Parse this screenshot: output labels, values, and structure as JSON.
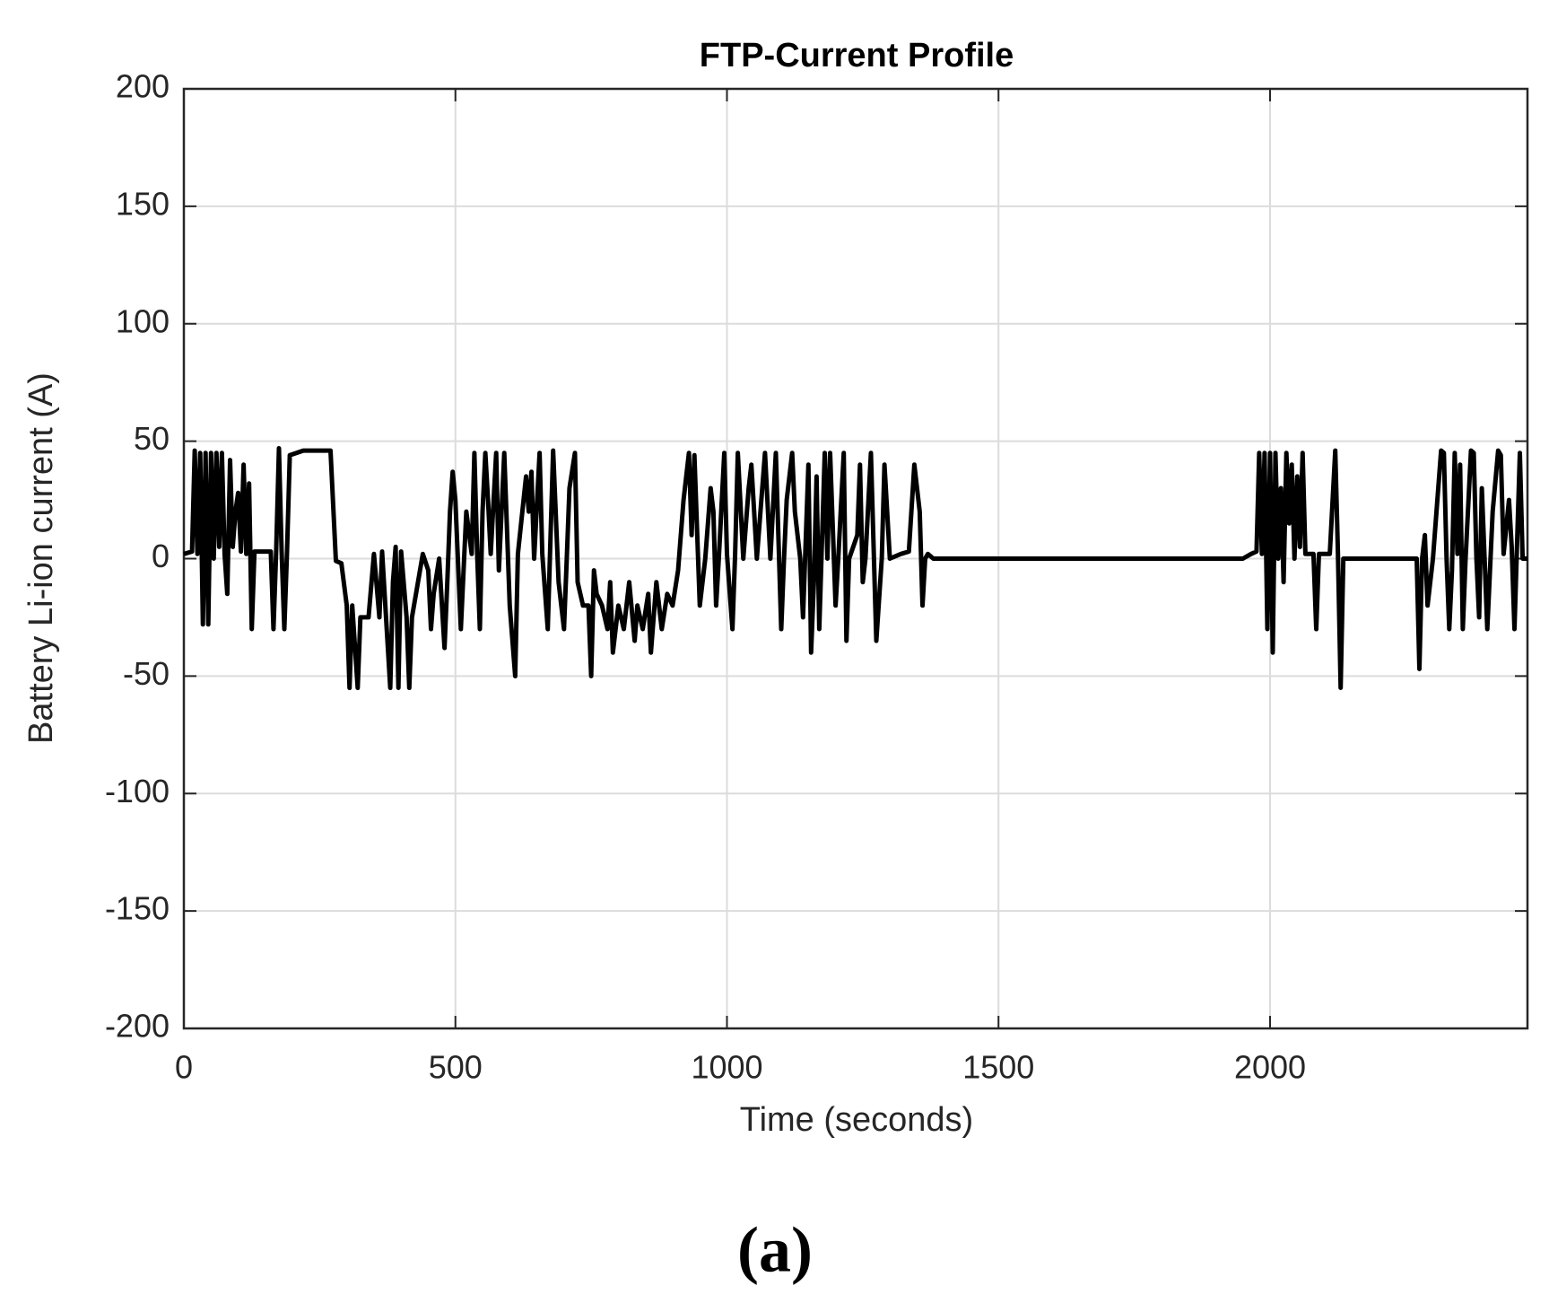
{
  "chart_data": {
    "type": "line",
    "title": "FTP-Current Profile",
    "x_label": "Time (seconds)",
    "y_label": "Battery Li-ion current (A)",
    "xlim": [
      0,
      2474
    ],
    "ylim": [
      -200,
      200
    ],
    "xticks": [
      0,
      500,
      1000,
      1500,
      2000
    ],
    "yticks": [
      -200,
      -150,
      -100,
      -50,
      0,
      50,
      100,
      150,
      200
    ],
    "grid": true,
    "series": [
      {
        "color": "#000000",
        "x": [
          0,
          15,
          20,
          25,
          30,
          35,
          40,
          45,
          50,
          55,
          60,
          65,
          70,
          75,
          80,
          85,
          90,
          95,
          100,
          105,
          110,
          115,
          120,
          125,
          130,
          140,
          160,
          165,
          170,
          175,
          180,
          185,
          190,
          195,
          220,
          250,
          270,
          280,
          290,
          300,
          305,
          310,
          320,
          325,
          340,
          350,
          360,
          365,
          380,
          385,
          390,
          395,
          400,
          410,
          415,
          420,
          440,
          450,
          455,
          460,
          470,
          480,
          485,
          490,
          495,
          500,
          510,
          520,
          530,
          535,
          540,
          545,
          550,
          555,
          560,
          565,
          575,
          580,
          590,
          600,
          610,
          615,
          630,
          635,
          640,
          645,
          655,
          660,
          670,
          680,
          690,
          700,
          705,
          710,
          720,
          725,
          735,
          745,
          750,
          755,
          760,
          770,
          780,
          785,
          790,
          800,
          810,
          820,
          830,
          835,
          845,
          855,
          860,
          870,
          880,
          890,
          900,
          910,
          920,
          930,
          935,
          940,
          950,
          960,
          970,
          975,
          980,
          985,
          995,
          1000,
          1010,
          1015,
          1020,
          1030,
          1040,
          1045,
          1050,
          1055,
          1070,
          1080,
          1090,
          1100,
          1105,
          1110,
          1120,
          1125,
          1135,
          1140,
          1150,
          1155,
          1160,
          1165,
          1170,
          1180,
          1185,
          1190,
          1200,
          1205,
          1215,
          1220,
          1225,
          1240,
          1245,
          1250,
          1255,
          1265,
          1275,
          1285,
          1290,
          1300,
          1320,
          1335,
          1345,
          1355,
          1360,
          1365,
          1370,
          1380,
          1950,
          1965,
          1975,
          1980,
          1985,
          1990,
          1995,
          2000,
          2005,
          2010,
          2015,
          2020,
          2025,
          2030,
          2035,
          2040,
          2045,
          2050,
          2055,
          2060,
          2065,
          2080,
          2085,
          2090,
          2110,
          2120,
          2125,
          2130,
          2135,
          2140,
          2270,
          2275,
          2280,
          2285,
          2290,
          2300,
          2315,
          2320,
          2325,
          2330,
          2335,
          2340,
          2345,
          2350,
          2355,
          2360,
          2370,
          2375,
          2380,
          2385,
          2390,
          2395,
          2400,
          2410,
          2420,
          2425,
          2430,
          2440,
          2445,
          2450,
          2460,
          2465,
          2474
        ],
        "values": [
          2,
          3,
          46,
          2,
          45,
          -28,
          45,
          -28,
          45,
          0,
          45,
          5,
          45,
          2,
          -15,
          42,
          5,
          20,
          28,
          3,
          40,
          2,
          32,
          -30,
          3,
          3,
          3,
          -30,
          3,
          47,
          3,
          -30,
          3,
          44,
          46,
          46,
          46,
          -1,
          -2,
          -20,
          -55,
          -20,
          -55,
          -25,
          -25,
          2,
          -25,
          3,
          -55,
          -10,
          5,
          -55,
          3,
          -25,
          -55,
          -25,
          2,
          -5,
          -30,
          -15,
          0,
          -38,
          -10,
          20,
          37,
          25,
          -30,
          20,
          2,
          45,
          2,
          -30,
          20,
          45,
          25,
          2,
          45,
          -5,
          45,
          -20,
          -50,
          2,
          35,
          20,
          37,
          0,
          45,
          2,
          -30,
          46,
          -10,
          -30,
          0,
          30,
          45,
          -10,
          -20,
          -20,
          -50,
          -5,
          -15,
          -20,
          -30,
          -10,
          -40,
          -20,
          -30,
          -10,
          -35,
          -20,
          -30,
          -15,
          -40,
          -10,
          -30,
          -15,
          -20,
          -5,
          25,
          45,
          10,
          44,
          -20,
          0,
          30,
          20,
          -20,
          0,
          45,
          2,
          -30,
          2,
          45,
          0,
          30,
          40,
          20,
          0,
          45,
          0,
          45,
          -30,
          0,
          25,
          45,
          20,
          0,
          -25,
          40,
          -40,
          -10,
          35,
          -30,
          45,
          0,
          45,
          -20,
          0,
          45,
          -35,
          0,
          10,
          40,
          -10,
          0,
          45,
          -35,
          0,
          40,
          0,
          2,
          3,
          40,
          20,
          -20,
          0,
          2,
          0,
          0,
          2,
          3,
          45,
          2,
          45,
          -30,
          45,
          -40,
          45,
          0,
          30,
          -10,
          45,
          15,
          40,
          0,
          35,
          5,
          45,
          2,
          2,
          -30,
          2,
          2,
          46,
          2,
          -55,
          0,
          0,
          0,
          -47,
          0,
          10,
          -20,
          0,
          46,
          45,
          0,
          -30,
          -5,
          45,
          2,
          40,
          -30,
          0,
          46,
          45,
          0,
          -25,
          30,
          0,
          -30,
          20,
          46,
          44,
          2,
          25,
          5,
          -30,
          45,
          0,
          0
        ]
      }
    ]
  },
  "caption": "(a)"
}
